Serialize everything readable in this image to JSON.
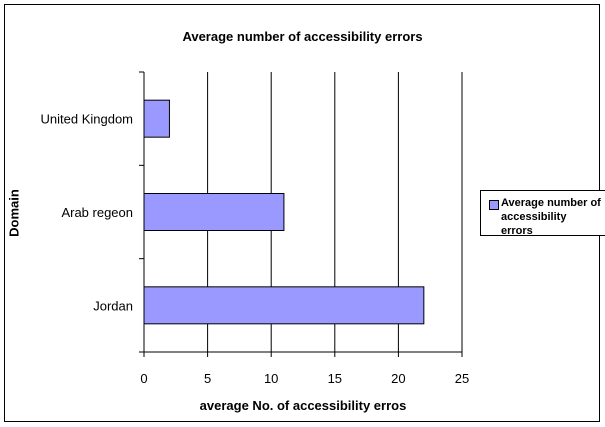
{
  "chart_data": {
    "type": "bar",
    "orientation": "horizontal",
    "title": "Average number of accessibility errors",
    "xlabel": "average No. of accessibility erros",
    "ylabel": "Domain",
    "categories": [
      "United Kingdom",
      "Arab regeon",
      "Jordan"
    ],
    "series": [
      {
        "name": "Average number of accessibility errors",
        "values": [
          2,
          11,
          22
        ],
        "color": "#9999ff"
      }
    ],
    "xlim": [
      0,
      25
    ],
    "x_ticks": [
      0,
      5,
      10,
      15,
      20,
      25
    ],
    "grid": "vertical",
    "legend_position": "right"
  }
}
